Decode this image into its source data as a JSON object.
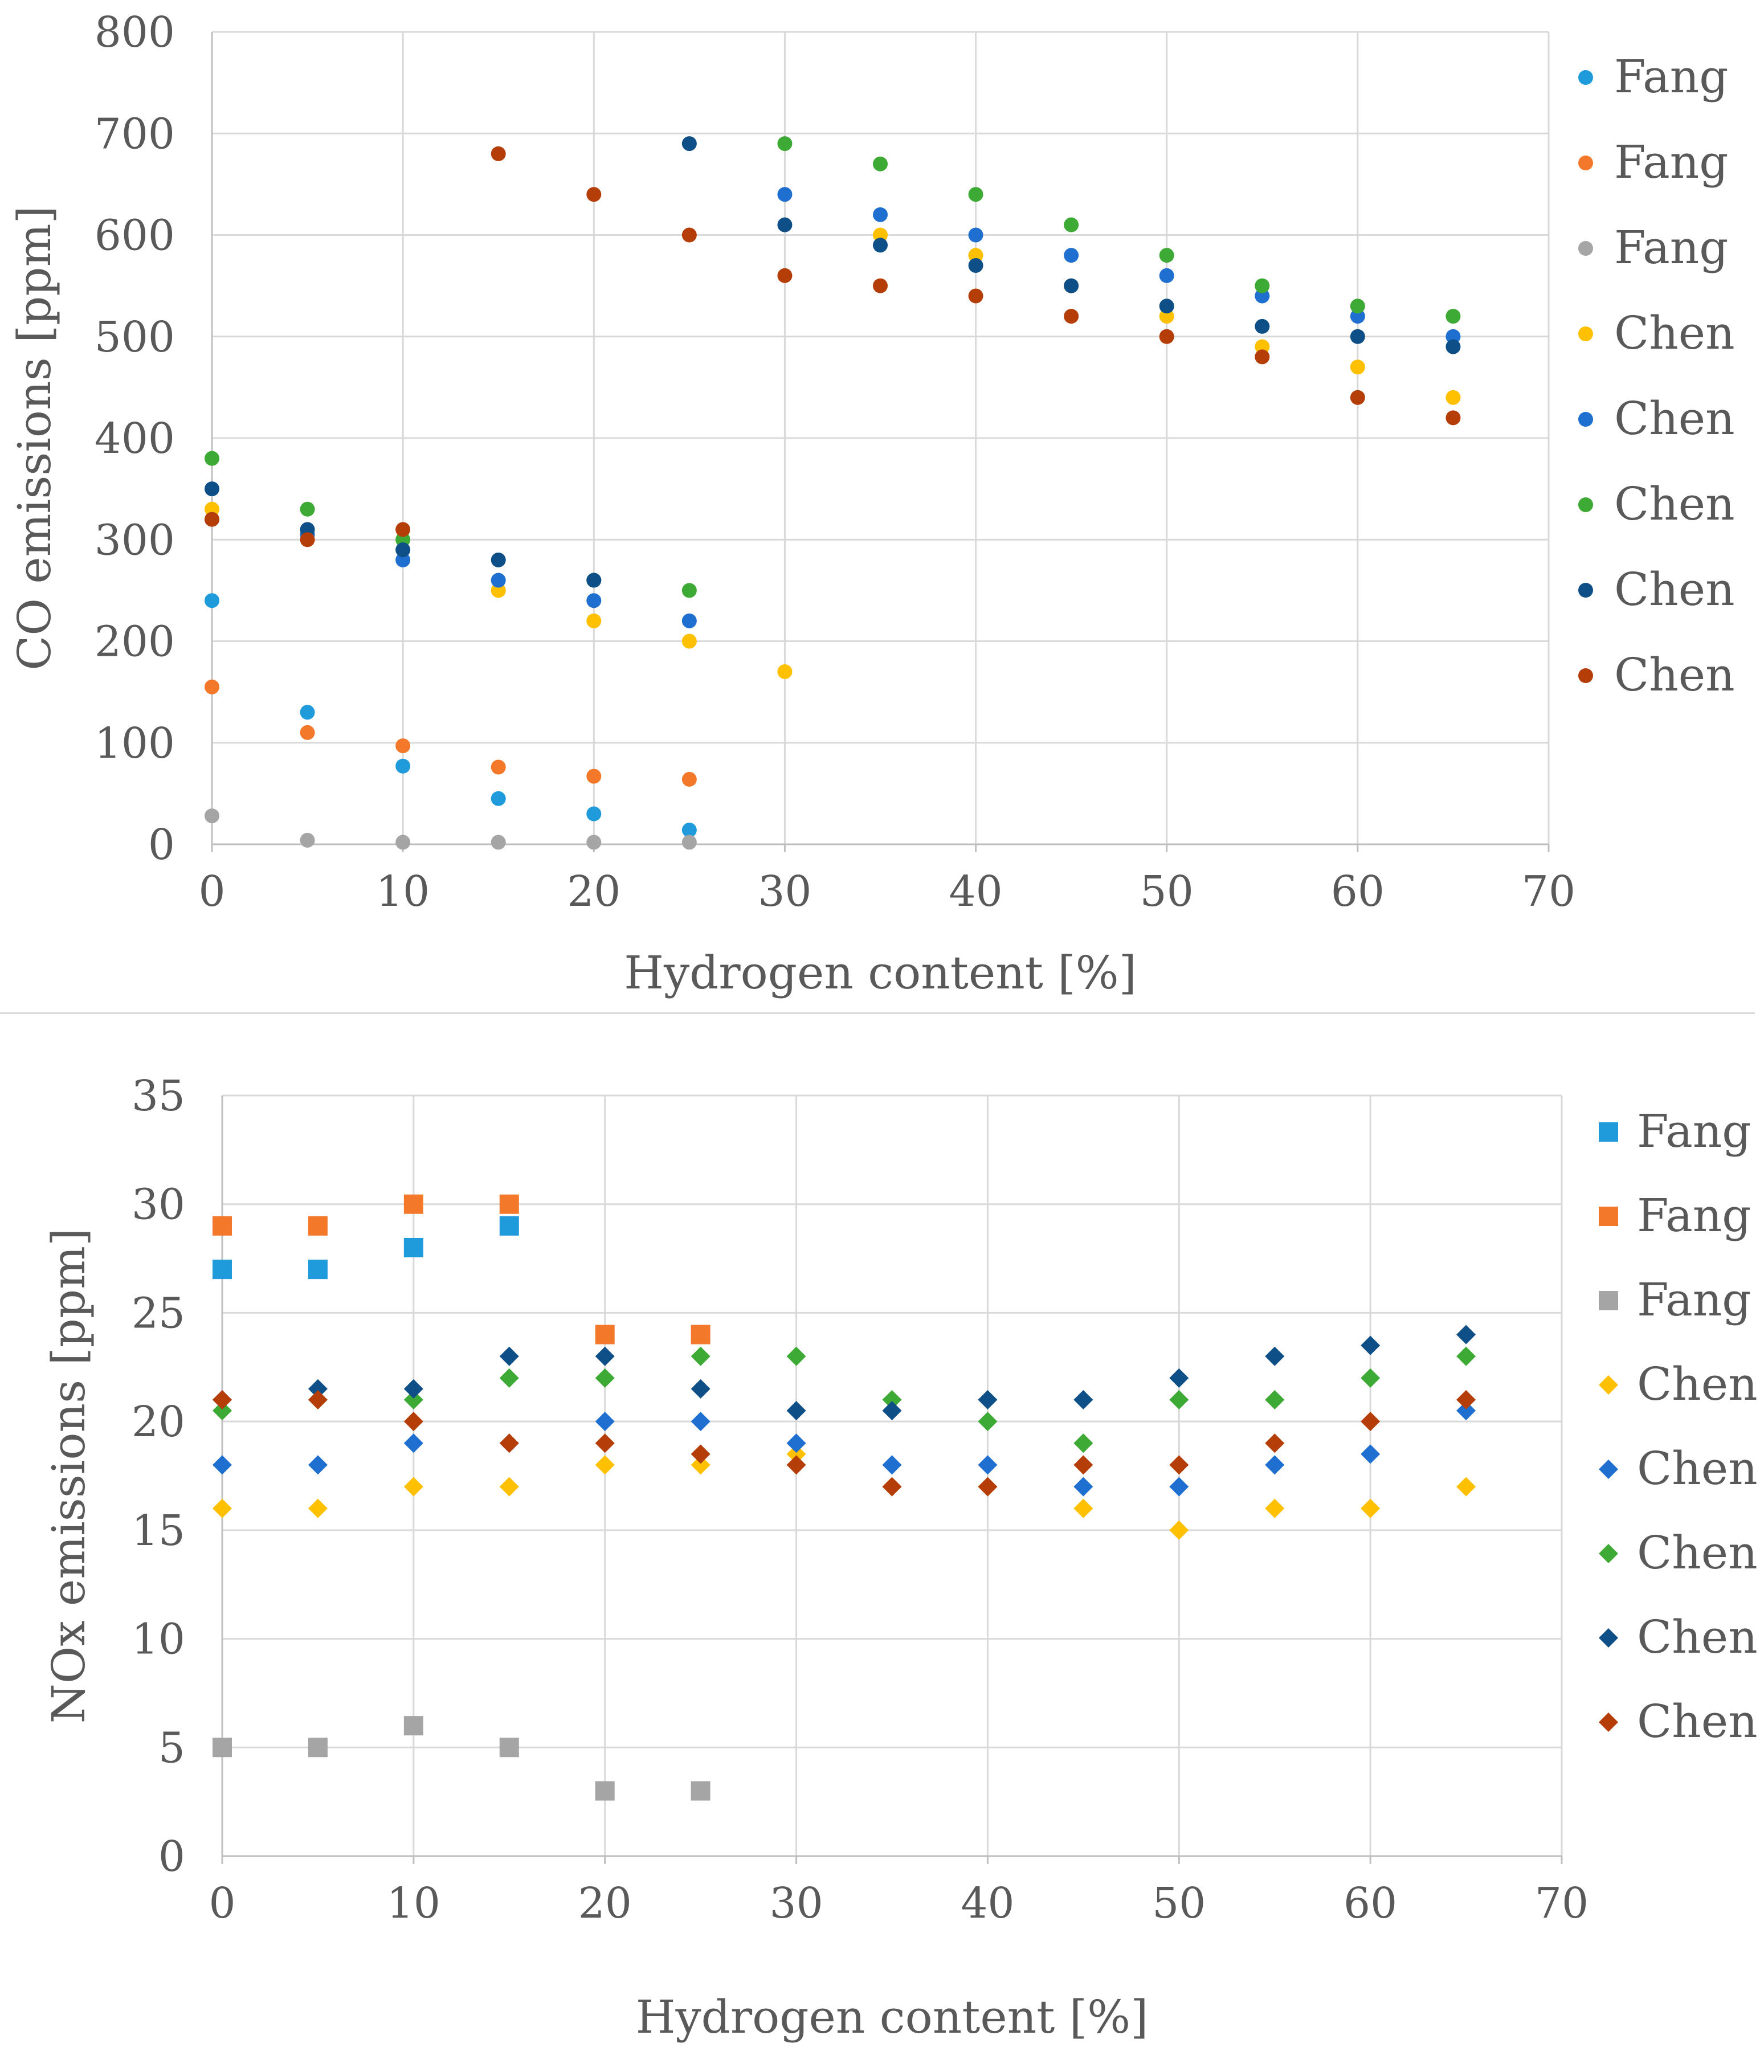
{
  "chart_data": [
    {
      "type": "scatter",
      "marker": "circle",
      "xlabel": "Hydrogen content [%]",
      "ylabel": "CO emissions [ppm]",
      "xlim": [
        0,
        70
      ],
      "ylim": [
        0,
        800
      ],
      "xticks": [
        0,
        10,
        20,
        30,
        40,
        50,
        60,
        70
      ],
      "yticks": [
        0,
        100,
        200,
        300,
        400,
        500,
        600,
        700,
        800
      ],
      "grid": true,
      "legend_position": "right",
      "series": [
        {
          "name": "Fang",
          "color": "#1f9bdc",
          "points": [
            [
              0,
              240
            ],
            [
              5,
              130
            ],
            [
              10,
              77
            ],
            [
              15,
              45
            ],
            [
              20,
              30
            ],
            [
              25,
              14
            ]
          ]
        },
        {
          "name": "Fang",
          "color": "#f4782a",
          "points": [
            [
              0,
              155
            ],
            [
              5,
              110
            ],
            [
              10,
              97
            ],
            [
              15,
              76
            ],
            [
              20,
              67
            ],
            [
              25,
              64
            ]
          ]
        },
        {
          "name": "Fang",
          "color": "#a5a5a5",
          "points": [
            [
              0,
              28
            ],
            [
              5,
              4
            ],
            [
              10,
              2
            ],
            [
              15,
              2
            ],
            [
              20,
              2
            ],
            [
              25,
              2
            ]
          ]
        },
        {
          "name": "Chen",
          "color": "#ffc000",
          "points": [
            [
              0,
              330
            ],
            [
              5,
              305
            ],
            [
              10,
              300
            ],
            [
              15,
              250
            ],
            [
              20,
              220
            ],
            [
              25,
              200
            ],
            [
              30,
              170
            ],
            [
              35,
              600
            ],
            [
              40,
              580
            ],
            [
              45,
              550
            ],
            [
              50,
              520
            ],
            [
              55,
              490
            ],
            [
              60,
              470
            ],
            [
              65,
              440
            ]
          ]
        },
        {
          "name": "Chen",
          "color": "#1f6fd0",
          "points": [
            [
              0,
              320
            ],
            [
              5,
              305
            ],
            [
              10,
              280
            ],
            [
              15,
              260
            ],
            [
              20,
              240
            ],
            [
              25,
              220
            ],
            [
              30,
              640
            ],
            [
              35,
              620
            ],
            [
              40,
              600
            ],
            [
              45,
              580
            ],
            [
              50,
              560
            ],
            [
              55,
              540
            ],
            [
              60,
              520
            ],
            [
              65,
              500
            ]
          ]
        },
        {
          "name": "Chen",
          "color": "#3daa35",
          "points": [
            [
              0,
              380
            ],
            [
              5,
              330
            ],
            [
              10,
              300
            ],
            [
              20,
              260
            ],
            [
              25,
              250
            ],
            [
              30,
              690
            ],
            [
              35,
              670
            ],
            [
              40,
              640
            ],
            [
              45,
              610
            ],
            [
              50,
              580
            ],
            [
              55,
              550
            ],
            [
              60,
              530
            ],
            [
              65,
              520
            ]
          ]
        },
        {
          "name": "Chen",
          "color": "#0d4f86",
          "points": [
            [
              0,
              350
            ],
            [
              5,
              310
            ],
            [
              10,
              290
            ],
            [
              15,
              280
            ],
            [
              20,
              260
            ],
            [
              25,
              690
            ],
            [
              30,
              610
            ],
            [
              35,
              590
            ],
            [
              40,
              570
            ],
            [
              45,
              550
            ],
            [
              50,
              530
            ],
            [
              55,
              510
            ],
            [
              60,
              500
            ],
            [
              65,
              490
            ]
          ]
        },
        {
          "name": "Chen",
          "color": "#b43d08",
          "points": [
            [
              0,
              320
            ],
            [
              5,
              300
            ],
            [
              10,
              310
            ],
            [
              15,
              680
            ],
            [
              20,
              640
            ],
            [
              25,
              600
            ],
            [
              30,
              560
            ],
            [
              35,
              550
            ],
            [
              40,
              540
            ],
            [
              45,
              520
            ],
            [
              50,
              500
            ],
            [
              55,
              480
            ],
            [
              60,
              440
            ],
            [
              65,
              420
            ]
          ]
        }
      ]
    },
    {
      "type": "scatter",
      "marker": "mixed",
      "xlabel": "Hydrogen content [%]",
      "ylabel": "NOx emissions [ppm]",
      "xlim": [
        0,
        70
      ],
      "ylim": [
        0,
        35
      ],
      "xticks": [
        0,
        10,
        20,
        30,
        40,
        50,
        60,
        70
      ],
      "yticks": [
        0,
        5,
        10,
        15,
        20,
        25,
        30,
        35
      ],
      "grid": true,
      "legend_position": "right",
      "series": [
        {
          "name": "Fang",
          "marker": "square",
          "color": "#1f9bdc",
          "points": [
            [
              0,
              27
            ],
            [
              5,
              27
            ],
            [
              10,
              28
            ],
            [
              15,
              29
            ]
          ]
        },
        {
          "name": "Fang",
          "marker": "square",
          "color": "#f4782a",
          "points": [
            [
              0,
              29
            ],
            [
              5,
              29
            ],
            [
              10,
              30
            ],
            [
              15,
              30
            ],
            [
              20,
              24
            ],
            [
              25,
              24
            ]
          ]
        },
        {
          "name": "Fang",
          "marker": "square",
          "color": "#a5a5a5",
          "points": [
            [
              0,
              5
            ],
            [
              5,
              5
            ],
            [
              10,
              6
            ],
            [
              15,
              5
            ],
            [
              20,
              3
            ],
            [
              25,
              3
            ]
          ]
        },
        {
          "name": "Chen",
          "marker": "diamond",
          "color": "#ffc000",
          "points": [
            [
              0,
              16
            ],
            [
              5,
              16
            ],
            [
              10,
              17
            ],
            [
              15,
              17
            ],
            [
              20,
              18
            ],
            [
              25,
              18
            ],
            [
              30,
              18.5
            ],
            [
              35,
              17
            ],
            [
              40,
              17
            ],
            [
              45,
              16
            ],
            [
              50,
              15
            ],
            [
              55,
              16
            ],
            [
              60,
              16
            ],
            [
              65,
              17
            ]
          ]
        },
        {
          "name": "Chen",
          "marker": "diamond",
          "color": "#1f6fd0",
          "points": [
            [
              0,
              18
            ],
            [
              5,
              18
            ],
            [
              10,
              19
            ],
            [
              15,
              19
            ],
            [
              20,
              20
            ],
            [
              25,
              20
            ],
            [
              30,
              19
            ],
            [
              35,
              18
            ],
            [
              40,
              18
            ],
            [
              45,
              17
            ],
            [
              50,
              17
            ],
            [
              55,
              18
            ],
            [
              60,
              18.5
            ],
            [
              65,
              20.5
            ]
          ]
        },
        {
          "name": "Chen",
          "marker": "diamond",
          "color": "#3daa35",
          "points": [
            [
              0,
              20.5
            ],
            [
              5,
              21
            ],
            [
              10,
              21
            ],
            [
              15,
              22
            ],
            [
              20,
              22
            ],
            [
              25,
              23
            ],
            [
              30,
              23
            ],
            [
              35,
              21
            ],
            [
              40,
              20
            ],
            [
              45,
              19
            ],
            [
              50,
              21
            ],
            [
              55,
              21
            ],
            [
              60,
              22
            ],
            [
              65,
              23
            ]
          ]
        },
        {
          "name": "Chen",
          "marker": "diamond",
          "color": "#0d4f86",
          "points": [
            [
              0,
              21
            ],
            [
              5,
              21.5
            ],
            [
              10,
              21.5
            ],
            [
              15,
              23
            ],
            [
              20,
              23
            ],
            [
              25,
              21.5
            ],
            [
              30,
              20.5
            ],
            [
              35,
              20.5
            ],
            [
              40,
              21
            ],
            [
              45,
              21
            ],
            [
              50,
              22
            ],
            [
              55,
              23
            ],
            [
              60,
              23.5
            ],
            [
              65,
              24
            ]
          ]
        },
        {
          "name": "Chen",
          "marker": "diamond",
          "color": "#b43d08",
          "points": [
            [
              0,
              21
            ],
            [
              5,
              21
            ],
            [
              10,
              20
            ],
            [
              15,
              19
            ],
            [
              20,
              19
            ],
            [
              25,
              18.5
            ],
            [
              30,
              18
            ],
            [
              35,
              17
            ],
            [
              40,
              17
            ],
            [
              45,
              18
            ],
            [
              50,
              18
            ],
            [
              55,
              19
            ],
            [
              60,
              20
            ],
            [
              65,
              21
            ]
          ]
        }
      ]
    }
  ]
}
